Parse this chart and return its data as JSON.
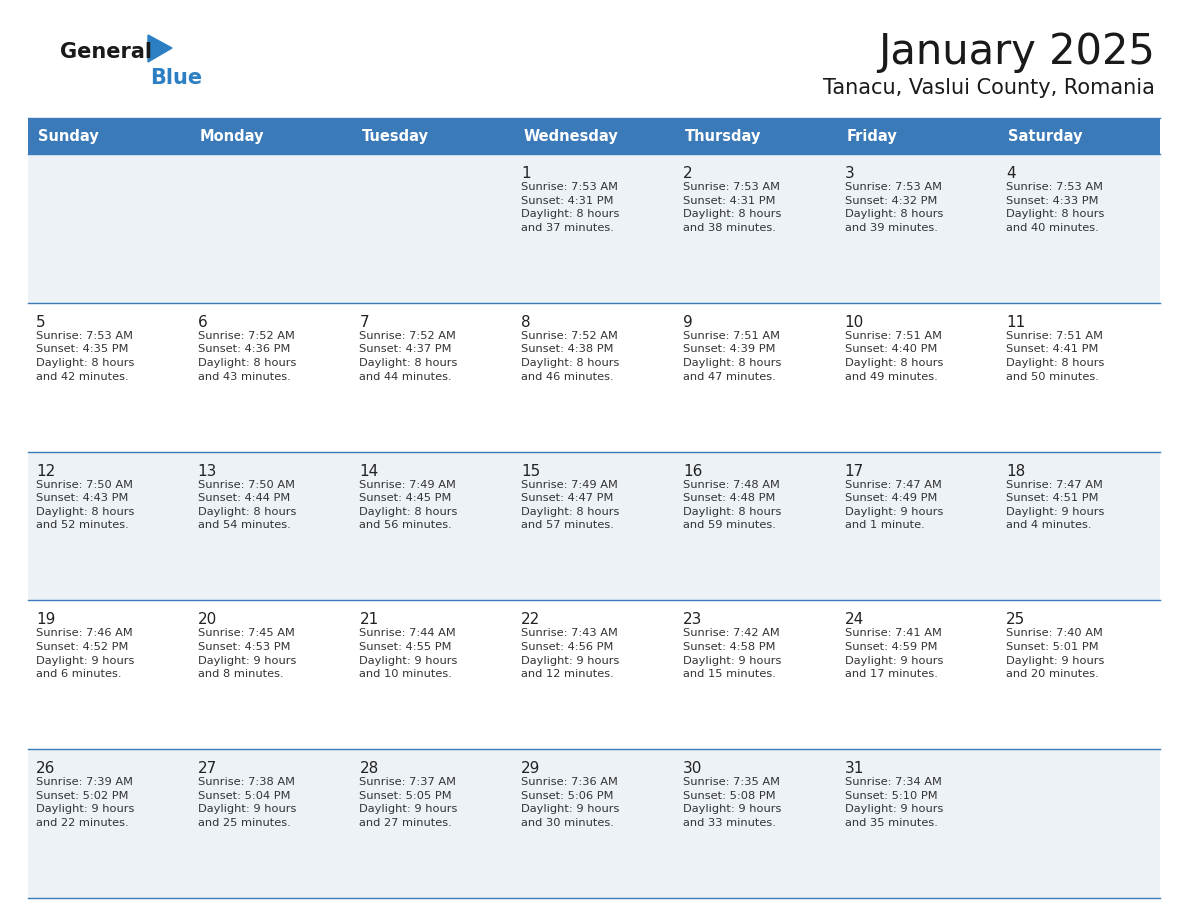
{
  "title": "January 2025",
  "subtitle": "Tanacu, Vaslui County, Romania",
  "header_bg_color": "#3a7ab8",
  "header_text_color": "#ffffff",
  "day_names": [
    "Sunday",
    "Monday",
    "Tuesday",
    "Wednesday",
    "Thursday",
    "Friday",
    "Saturday"
  ],
  "cell_bg_light": "#edf2f7",
  "cell_bg_white": "#ffffff",
  "date_color": "#222222",
  "text_color": "#333333",
  "line_color": "#3a7ab8",
  "logo_general_color": "#1a1a1a",
  "logo_blue_color": "#2b7fc2",
  "fig_width": 11.88,
  "fig_height": 9.18,
  "dpi": 100,
  "weeks": [
    [
      {
        "day": null,
        "info": null
      },
      {
        "day": null,
        "info": null
      },
      {
        "day": null,
        "info": null
      },
      {
        "day": "1",
        "info": "Sunrise: 7:53 AM\nSunset: 4:31 PM\nDaylight: 8 hours\nand 37 minutes."
      },
      {
        "day": "2",
        "info": "Sunrise: 7:53 AM\nSunset: 4:31 PM\nDaylight: 8 hours\nand 38 minutes."
      },
      {
        "day": "3",
        "info": "Sunrise: 7:53 AM\nSunset: 4:32 PM\nDaylight: 8 hours\nand 39 minutes."
      },
      {
        "day": "4",
        "info": "Sunrise: 7:53 AM\nSunset: 4:33 PM\nDaylight: 8 hours\nand 40 minutes."
      }
    ],
    [
      {
        "day": "5",
        "info": "Sunrise: 7:53 AM\nSunset: 4:35 PM\nDaylight: 8 hours\nand 42 minutes."
      },
      {
        "day": "6",
        "info": "Sunrise: 7:52 AM\nSunset: 4:36 PM\nDaylight: 8 hours\nand 43 minutes."
      },
      {
        "day": "7",
        "info": "Sunrise: 7:52 AM\nSunset: 4:37 PM\nDaylight: 8 hours\nand 44 minutes."
      },
      {
        "day": "8",
        "info": "Sunrise: 7:52 AM\nSunset: 4:38 PM\nDaylight: 8 hours\nand 46 minutes."
      },
      {
        "day": "9",
        "info": "Sunrise: 7:51 AM\nSunset: 4:39 PM\nDaylight: 8 hours\nand 47 minutes."
      },
      {
        "day": "10",
        "info": "Sunrise: 7:51 AM\nSunset: 4:40 PM\nDaylight: 8 hours\nand 49 minutes."
      },
      {
        "day": "11",
        "info": "Sunrise: 7:51 AM\nSunset: 4:41 PM\nDaylight: 8 hours\nand 50 minutes."
      }
    ],
    [
      {
        "day": "12",
        "info": "Sunrise: 7:50 AM\nSunset: 4:43 PM\nDaylight: 8 hours\nand 52 minutes."
      },
      {
        "day": "13",
        "info": "Sunrise: 7:50 AM\nSunset: 4:44 PM\nDaylight: 8 hours\nand 54 minutes."
      },
      {
        "day": "14",
        "info": "Sunrise: 7:49 AM\nSunset: 4:45 PM\nDaylight: 8 hours\nand 56 minutes."
      },
      {
        "day": "15",
        "info": "Sunrise: 7:49 AM\nSunset: 4:47 PM\nDaylight: 8 hours\nand 57 minutes."
      },
      {
        "day": "16",
        "info": "Sunrise: 7:48 AM\nSunset: 4:48 PM\nDaylight: 8 hours\nand 59 minutes."
      },
      {
        "day": "17",
        "info": "Sunrise: 7:47 AM\nSunset: 4:49 PM\nDaylight: 9 hours\nand 1 minute."
      },
      {
        "day": "18",
        "info": "Sunrise: 7:47 AM\nSunset: 4:51 PM\nDaylight: 9 hours\nand 4 minutes."
      }
    ],
    [
      {
        "day": "19",
        "info": "Sunrise: 7:46 AM\nSunset: 4:52 PM\nDaylight: 9 hours\nand 6 minutes."
      },
      {
        "day": "20",
        "info": "Sunrise: 7:45 AM\nSunset: 4:53 PM\nDaylight: 9 hours\nand 8 minutes."
      },
      {
        "day": "21",
        "info": "Sunrise: 7:44 AM\nSunset: 4:55 PM\nDaylight: 9 hours\nand 10 minutes."
      },
      {
        "day": "22",
        "info": "Sunrise: 7:43 AM\nSunset: 4:56 PM\nDaylight: 9 hours\nand 12 minutes."
      },
      {
        "day": "23",
        "info": "Sunrise: 7:42 AM\nSunset: 4:58 PM\nDaylight: 9 hours\nand 15 minutes."
      },
      {
        "day": "24",
        "info": "Sunrise: 7:41 AM\nSunset: 4:59 PM\nDaylight: 9 hours\nand 17 minutes."
      },
      {
        "day": "25",
        "info": "Sunrise: 7:40 AM\nSunset: 5:01 PM\nDaylight: 9 hours\nand 20 minutes."
      }
    ],
    [
      {
        "day": "26",
        "info": "Sunrise: 7:39 AM\nSunset: 5:02 PM\nDaylight: 9 hours\nand 22 minutes."
      },
      {
        "day": "27",
        "info": "Sunrise: 7:38 AM\nSunset: 5:04 PM\nDaylight: 9 hours\nand 25 minutes."
      },
      {
        "day": "28",
        "info": "Sunrise: 7:37 AM\nSunset: 5:05 PM\nDaylight: 9 hours\nand 27 minutes."
      },
      {
        "day": "29",
        "info": "Sunrise: 7:36 AM\nSunset: 5:06 PM\nDaylight: 9 hours\nand 30 minutes."
      },
      {
        "day": "30",
        "info": "Sunrise: 7:35 AM\nSunset: 5:08 PM\nDaylight: 9 hours\nand 33 minutes."
      },
      {
        "day": "31",
        "info": "Sunrise: 7:34 AM\nSunset: 5:10 PM\nDaylight: 9 hours\nand 35 minutes."
      },
      {
        "day": null,
        "info": null
      }
    ]
  ]
}
